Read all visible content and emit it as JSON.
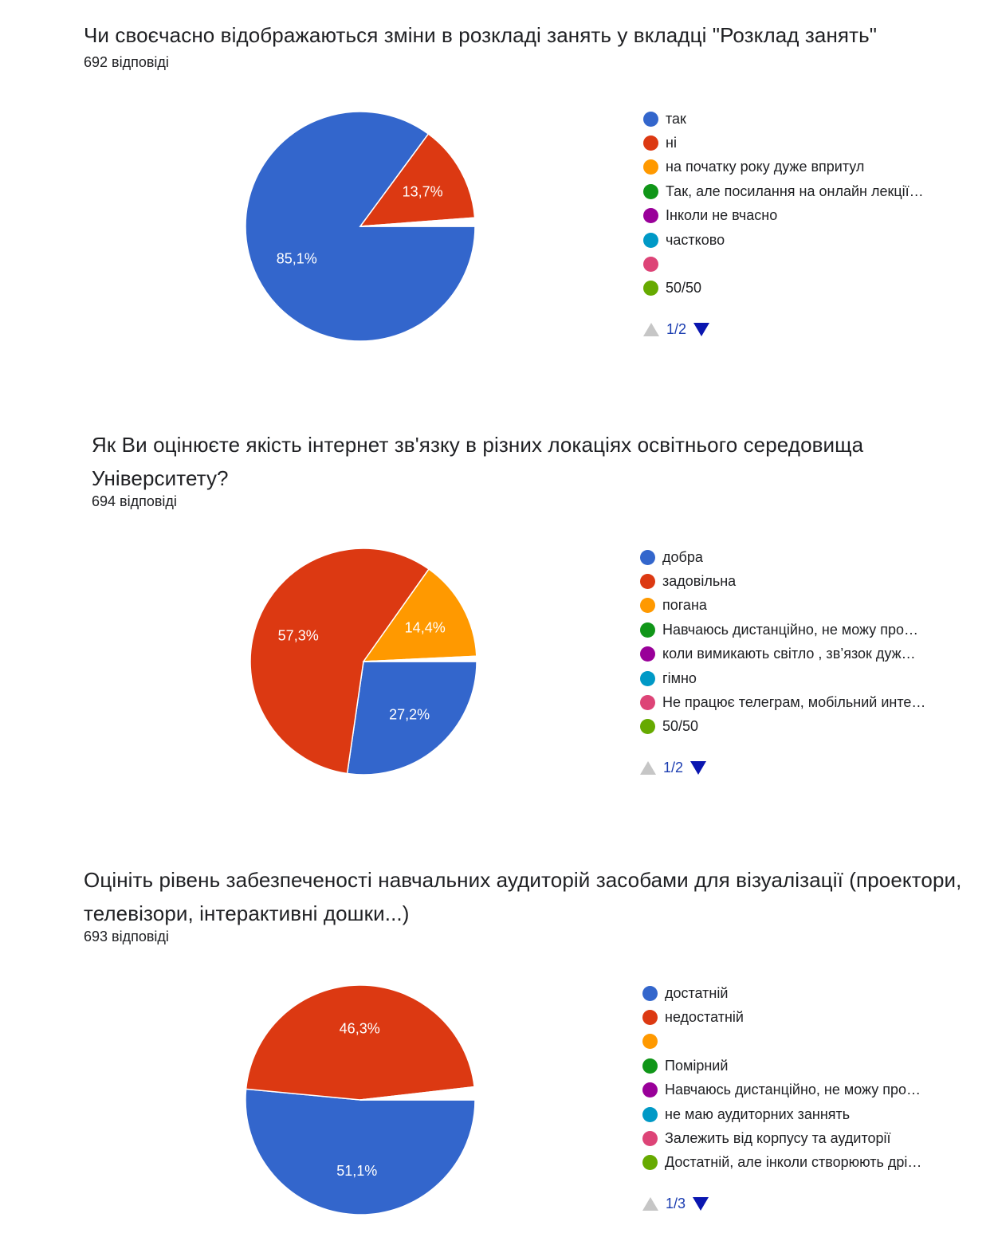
{
  "questions": [
    {
      "title": "Чи своєчасно відображаються зміни в розкладі занять у вкладці \"Розклад занять\"",
      "responses": "692 відповіді",
      "legend": [
        {
          "label": "так",
          "color": "#3366cc"
        },
        {
          "label": "ні",
          "color": "#dc3912"
        },
        {
          "label": "на початку року дуже впритул",
          "color": "#ff9900"
        },
        {
          "label": "Так, але посилання на онлайн лекції…",
          "color": "#109618"
        },
        {
          "label": "Інколи не вчасно",
          "color": "#990099"
        },
        {
          "label": "частково",
          "color": "#0099c6"
        },
        {
          "label": "",
          "color": "#dd4477"
        },
        {
          "label": "50/50",
          "color": "#66aa00"
        }
      ],
      "pager": "1/2"
    },
    {
      "title": "Як Ви оцінюєте якість інтернет зв'язку в різних локаціях освітнього середовища Університету?",
      "responses": "694 відповіді",
      "legend": [
        {
          "label": "добра",
          "color": "#3366cc"
        },
        {
          "label": "задовільна",
          "color": "#dc3912"
        },
        {
          "label": "погана",
          "color": "#ff9900"
        },
        {
          "label": "Навчаюсь дистанційно, не можу про…",
          "color": "#109618"
        },
        {
          "label": "коли вимикають світло , зв’язок дуж…",
          "color": "#990099"
        },
        {
          "label": "гімно",
          "color": "#0099c6"
        },
        {
          "label": "Не працює телеграм, мобільний инте…",
          "color": "#dd4477"
        },
        {
          "label": "50/50",
          "color": "#66aa00"
        }
      ],
      "pager": "1/2"
    },
    {
      "title": "Оцініть рівень забезпеченості навчальних аудиторій засобами для візуалізації (проектори, телевізори, інтерактивні дошки...)",
      "responses": "693 відповіді",
      "legend": [
        {
          "label": "достатній",
          "color": "#3366cc"
        },
        {
          "label": "недостатній",
          "color": "#dc3912"
        },
        {
          "label": "",
          "color": "#ff9900"
        },
        {
          "label": "Помірний",
          "color": "#109618"
        },
        {
          "label": "Навчаюсь дистанційно, не можу про…",
          "color": "#990099"
        },
        {
          "label": "не маю аудиторних заннять",
          "color": "#0099c6"
        },
        {
          "label": "Залежить від корпусу та аудиторії",
          "color": "#dd4477"
        },
        {
          "label": "Достатній, але інколи створюють дрі…",
          "color": "#66aa00"
        }
      ],
      "pager": "1/3"
    }
  ],
  "chart_data": [
    {
      "type": "pie",
      "title": "Чи своєчасно відображаються зміни в розкладі занять у вкладці \"Розклад занять\"",
      "subtitle": "692 відповіді",
      "categories": [
        "так",
        "ні",
        "на початку року дуже впритул",
        "Так, але посилання на онлайн лекції…",
        "Інколи не вчасно",
        "частково",
        "",
        "50/50"
      ],
      "values": [
        85.1,
        13.7,
        0.2,
        0.2,
        0.2,
        0.2,
        0.2,
        0.2
      ],
      "data_labels": [
        "85,1%",
        "13,7%",
        "",
        "",
        "",
        "",
        "",
        ""
      ],
      "colors": [
        "#3366cc",
        "#dc3912",
        "#ff9900",
        "#109618",
        "#990099",
        "#0099c6",
        "#dd4477",
        "#66aa00"
      ],
      "legend_position": "right",
      "legend_page": "1/2"
    },
    {
      "type": "pie",
      "title": "Як Ви оцінюєте якість інтернет зв'язку в різних локаціях освітнього середовища Університету?",
      "subtitle": "694 відповіді",
      "categories": [
        "добра",
        "задовільна",
        "погана",
        "Навчаюсь дистанційно, не можу про…",
        "коли вимикають світло , зв’язок дуж…",
        "гімно",
        "Не працює телеграм, мобільний инте…",
        "50/50"
      ],
      "values": [
        27.2,
        57.3,
        14.4,
        0.15,
        0.15,
        0.15,
        0.15,
        0.15
      ],
      "data_labels": [
        "27,2%",
        "57,3%",
        "14,4%",
        "",
        "",
        "",
        "",
        ""
      ],
      "colors": [
        "#3366cc",
        "#dc3912",
        "#ff9900",
        "#109618",
        "#990099",
        "#0099c6",
        "#dd4477",
        "#66aa00"
      ],
      "legend_position": "right",
      "legend_page": "1/2"
    },
    {
      "type": "pie",
      "title": "Оцініть рівень забезпеченості навчальних аудиторій засобами для візуалізації (проектори, телевізори, інтерактивні дошки...)",
      "subtitle": "693 відповіді",
      "categories": [
        "достатній",
        "недостатній",
        "",
        "Помірний",
        "Навчаюсь дистанційно, не можу про…",
        "не маю аудиторних заннять",
        "Залежить від корпусу та аудиторії",
        "Достатній, але інколи створюють дрі…"
      ],
      "values": [
        51.1,
        46.3,
        0.3,
        0.3,
        0.3,
        0.3,
        0.3,
        0.3
      ],
      "data_labels": [
        "51,1%",
        "46,3%",
        "",
        "",
        "",
        "",
        "",
        ""
      ],
      "colors": [
        "#3366cc",
        "#dc3912",
        "#ff9900",
        "#109618",
        "#990099",
        "#0099c6",
        "#dd4477",
        "#66aa00"
      ],
      "legend_position": "right",
      "legend_page": "1/3"
    }
  ]
}
